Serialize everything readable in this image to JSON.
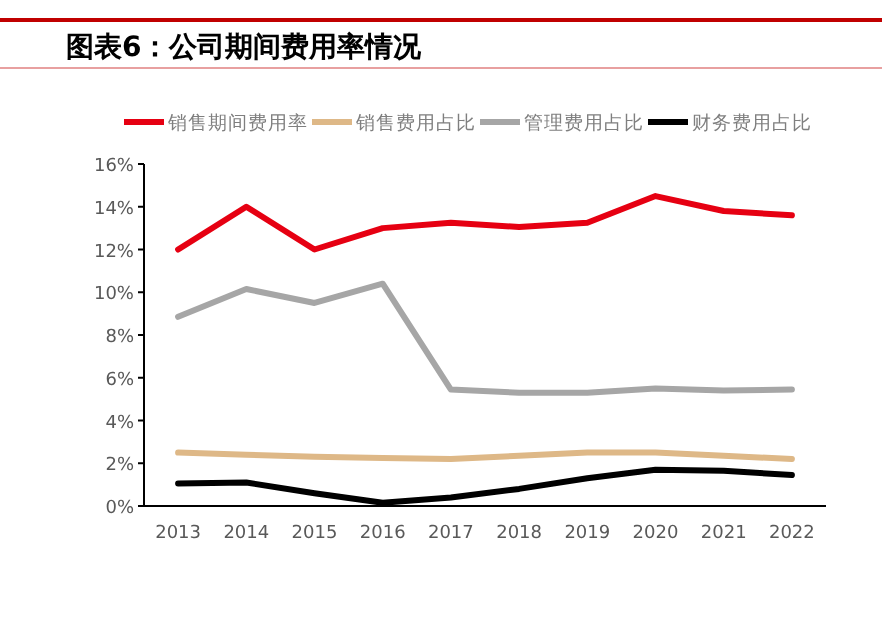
{
  "chart_data": {
    "type": "line",
    "title": "图表6：公司期间费用率情况",
    "categories": [
      "2013",
      "2014",
      "2015",
      "2016",
      "2017",
      "2018",
      "2019",
      "2020",
      "2021",
      "2022"
    ],
    "series": [
      {
        "name": "销售期间费用率",
        "color": "#e60012",
        "values": [
          12.0,
          14.0,
          12.0,
          13.0,
          13.25,
          13.05,
          13.25,
          14.5,
          13.8,
          13.6
        ]
      },
      {
        "name": "销售费用占比",
        "color": "#deb887",
        "values": [
          2.5,
          2.4,
          2.3,
          2.25,
          2.2,
          2.35,
          2.5,
          2.5,
          2.35,
          2.2
        ]
      },
      {
        "name": "管理费用占比",
        "color": "#a6a6a6",
        "values": [
          8.85,
          10.15,
          9.5,
          10.4,
          5.45,
          5.3,
          5.3,
          5.5,
          5.4,
          5.45
        ]
      },
      {
        "name": "财务费用占比",
        "color": "#000000",
        "values": [
          1.05,
          1.1,
          0.6,
          0.15,
          0.4,
          0.8,
          1.3,
          1.7,
          1.65,
          1.45
        ]
      }
    ],
    "ylim": [
      0,
      16
    ],
    "yticks": [
      {
        "value": 0,
        "label": "0%"
      },
      {
        "value": 2,
        "label": "2%"
      },
      {
        "value": 4,
        "label": "4%"
      },
      {
        "value": 6,
        "label": "6%"
      },
      {
        "value": 8,
        "label": "8%"
      },
      {
        "value": 10,
        "label": "10%"
      },
      {
        "value": 12,
        "label": "12%"
      },
      {
        "value": 14,
        "label": "14%"
      },
      {
        "value": 16,
        "label": "16%"
      }
    ],
    "legend": "top",
    "grid": false,
    "line_style": "solid"
  }
}
